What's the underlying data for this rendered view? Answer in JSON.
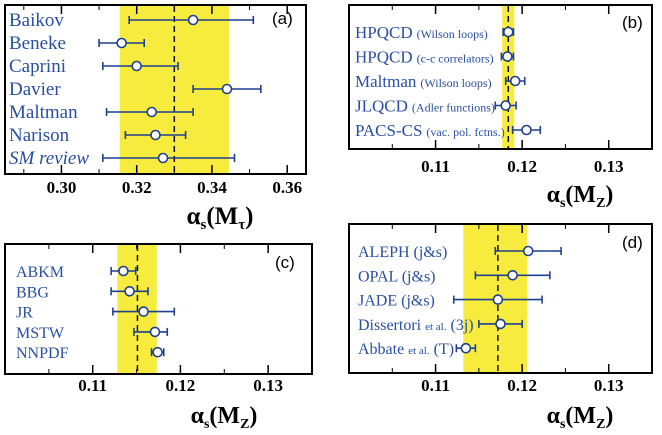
{
  "colors": {
    "band": "#f7ec3e",
    "marker_line": "#1f3f8f",
    "label": "#2a4fa0",
    "frame": "#000000"
  },
  "chart_data": [
    {
      "type": "scatter",
      "panel_tag": "(a)",
      "xlim": [
        0.285,
        0.365
      ],
      "xticks": [
        "0.30",
        "0.32",
        "0.34",
        "0.36"
      ],
      "xtick_values": [
        0.3,
        0.32,
        0.34,
        0.36
      ],
      "xlabel_main": "α",
      "xlabel_sub": "s",
      "xlabel_arg": "(M",
      "xlabel_argsub": "τ",
      "xlabel_close": ")",
      "band": [
        0.3155,
        0.3445
      ],
      "central": 0.33,
      "points": [
        {
          "label": "Baikov",
          "label_small": "",
          "italic": false,
          "value": 0.335,
          "err_lo": 0.017,
          "err_hi": 0.016
        },
        {
          "label": "Beneke",
          "label_small": "",
          "italic": false,
          "value": 0.316,
          "err_lo": 0.006,
          "err_hi": 0.006
        },
        {
          "label": "Caprini",
          "label_small": "",
          "italic": false,
          "value": 0.32,
          "err_lo": 0.009,
          "err_hi": 0.011
        },
        {
          "label": "Davier",
          "label_small": "",
          "italic": false,
          "value": 0.344,
          "err_lo": 0.009,
          "err_hi": 0.009
        },
        {
          "label": "Maltman",
          "label_small": "",
          "italic": false,
          "value": 0.324,
          "err_lo": 0.012,
          "err_hi": 0.011
        },
        {
          "label": "Narison",
          "label_small": "",
          "italic": false,
          "value": 0.325,
          "err_lo": 0.008,
          "err_hi": 0.008
        },
        {
          "label": "SM review",
          "label_small": "",
          "italic": true,
          "value": 0.327,
          "err_lo": 0.016,
          "err_hi": 0.019
        }
      ]
    },
    {
      "type": "scatter",
      "panel_tag": "(b)",
      "xlim": [
        0.1,
        0.135
      ],
      "xticks": [
        "0.11",
        "0.12",
        "0.13"
      ],
      "xtick_values": [
        0.11,
        0.12,
        0.13
      ],
      "xlabel_main": "α",
      "xlabel_sub": "s",
      "xlabel_arg": "(M",
      "xlabel_argsub": "Z",
      "xlabel_close": ")",
      "band": [
        0.1177,
        0.1191
      ],
      "central": 0.1184,
      "points": [
        {
          "label": "HPQCD",
          "label_small": "(Wilson loops)",
          "italic": false,
          "value": 0.1184,
          "err_lo": 0.0006,
          "err_hi": 0.0006
        },
        {
          "label": "HPQCD",
          "label_small": "(c-c correlators)",
          "italic": false,
          "value": 0.1183,
          "err_lo": 0.0007,
          "err_hi": 0.0007
        },
        {
          "label": "Maltman",
          "label_small": "(Wilson loops)",
          "italic": false,
          "value": 0.1192,
          "err_lo": 0.0011,
          "err_hi": 0.0011
        },
        {
          "label": "JLQCD",
          "label_small": "(Adler functions)",
          "italic": false,
          "value": 0.1181,
          "err_lo": 0.0012,
          "err_hi": 0.0012
        },
        {
          "label": "PACS-CS",
          "label_small": "(vac. pol. fctns.)",
          "italic": false,
          "value": 0.1205,
          "err_lo": 0.0016,
          "err_hi": 0.0016
        }
      ]
    },
    {
      "type": "scatter",
      "panel_tag": "(c)",
      "xlim": [
        0.1,
        0.135
      ],
      "xticks": [
        "0.11",
        "0.12",
        "0.13"
      ],
      "xtick_values": [
        0.11,
        0.12,
        0.13
      ],
      "xlabel_main": "α",
      "xlabel_sub": "s",
      "xlabel_arg": "(M",
      "xlabel_argsub": "Z",
      "xlabel_close": ")",
      "band": [
        0.1128,
        0.1173
      ],
      "central": 0.1151,
      "points": [
        {
          "label": "ABKM",
          "label_small": "",
          "italic": false,
          "value": 0.1135,
          "err_lo": 0.0014,
          "err_hi": 0.0014
        },
        {
          "label": "BBG",
          "label_small": "",
          "italic": false,
          "value": 0.1142,
          "err_lo": 0.0021,
          "err_hi": 0.0021
        },
        {
          "label": "JR",
          "label_small": "",
          "italic": false,
          "value": 0.1158,
          "err_lo": 0.0035,
          "err_hi": 0.0035
        },
        {
          "label": "MSTW",
          "label_small": "",
          "italic": false,
          "value": 0.1171,
          "err_lo": 0.0024,
          "err_hi": 0.0014
        },
        {
          "label": "NNPDF",
          "label_small": "",
          "italic": false,
          "value": 0.1174,
          "err_lo": 0.0007,
          "err_hi": 0.0007
        }
      ]
    },
    {
      "type": "scatter",
      "panel_tag": "(d)",
      "xlim": [
        0.1,
        0.135
      ],
      "xticks": [
        "0.11",
        "0.12",
        "0.13"
      ],
      "xtick_values": [
        0.11,
        0.12,
        0.13
      ],
      "xlabel_main": "α",
      "xlabel_sub": "s",
      "xlabel_arg": "(M",
      "xlabel_argsub": "Z",
      "xlabel_close": ")",
      "band": [
        0.1132,
        0.1206
      ],
      "central": 0.1172,
      "points": [
        {
          "label": "ALEPH (j&s)",
          "label_small": "",
          "italic": false,
          "value": 0.1207,
          "err_lo": 0.0038,
          "err_hi": 0.0038
        },
        {
          "label": "OPAL  (j&s)",
          "label_small": "",
          "italic": false,
          "value": 0.1189,
          "err_lo": 0.0043,
          "err_hi": 0.0043
        },
        {
          "label": "JADE  (j&s)",
          "label_small": "",
          "italic": false,
          "value": 0.1172,
          "err_lo": 0.0051,
          "err_hi": 0.0051
        },
        {
          "label": "Dissertori",
          "label_small": "et al.",
          "label_tail": " (3j)",
          "italic": false,
          "value": 0.1175,
          "err_lo": 0.0025,
          "err_hi": 0.0025
        },
        {
          "label": "Abbate",
          "label_small": "et al.",
          "label_tail": " (T)",
          "italic": false,
          "value": 0.1135,
          "err_lo": 0.0011,
          "err_hi": 0.0011
        }
      ]
    }
  ]
}
